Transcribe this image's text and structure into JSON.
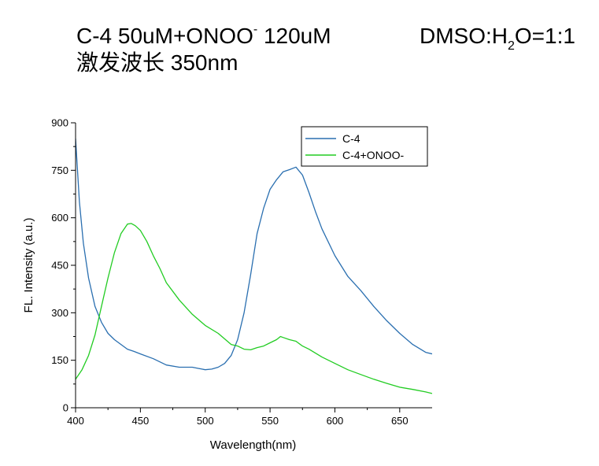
{
  "heading": {
    "line1_main": "C-4 50uM+ONOO",
    "line1_sup": "-",
    "line1_tail": " 120uM",
    "solvent_a": "DMSO:H",
    "solvent_sub": "2",
    "solvent_b": "O=1:1",
    "line2": "激发波长 350nm"
  },
  "chart_data": {
    "type": "line",
    "xlabel": "Wavelength(nm)",
    "ylabel": "FL. Intensity (a.u.)",
    "xlim": [
      400,
      675
    ],
    "ylim": [
      0,
      900
    ],
    "xticks": [
      400,
      450,
      500,
      550,
      600,
      650
    ],
    "yticks": [
      0,
      150,
      300,
      450,
      600,
      750,
      900
    ],
    "grid": false,
    "legend": "top-right",
    "series": [
      {
        "name": "C-4",
        "color": "#2a6fb0",
        "x": [
          400,
          403,
          406,
          410,
          415,
          420,
          425,
          430,
          435,
          440,
          445,
          450,
          460,
          470,
          480,
          490,
          495,
          500,
          505,
          510,
          515,
          520,
          525,
          530,
          535,
          540,
          545,
          550,
          555,
          560,
          565,
          570,
          575,
          580,
          585,
          590,
          600,
          610,
          620,
          630,
          640,
          650,
          660,
          670,
          675
        ],
        "y": [
          850,
          650,
          520,
          410,
          320,
          270,
          235,
          215,
          200,
          185,
          178,
          170,
          155,
          135,
          128,
          128,
          124,
          120,
          122,
          128,
          140,
          165,
          215,
          300,
          420,
          550,
          630,
          690,
          720,
          745,
          752,
          760,
          735,
          680,
          620,
          565,
          480,
          415,
          370,
          320,
          275,
          235,
          200,
          175,
          170
        ]
      },
      {
        "name": "C-4+ONOO-",
        "color": "#22cc22",
        "x": [
          400,
          405,
          410,
          415,
          420,
          425,
          430,
          435,
          440,
          443,
          446,
          450,
          455,
          460,
          465,
          470,
          480,
          490,
          500,
          510,
          520,
          525,
          530,
          535,
          540,
          545,
          550,
          555,
          558,
          560,
          565,
          570,
          575,
          580,
          590,
          600,
          610,
          620,
          630,
          640,
          650,
          660,
          670,
          675
        ],
        "y": [
          90,
          120,
          165,
          230,
          320,
          410,
          490,
          550,
          580,
          582,
          575,
          560,
          525,
          480,
          440,
          395,
          340,
          295,
          260,
          235,
          200,
          195,
          185,
          183,
          190,
          195,
          205,
          215,
          225,
          222,
          215,
          210,
          195,
          185,
          160,
          140,
          120,
          105,
          90,
          77,
          65,
          58,
          50,
          45
        ]
      }
    ]
  }
}
